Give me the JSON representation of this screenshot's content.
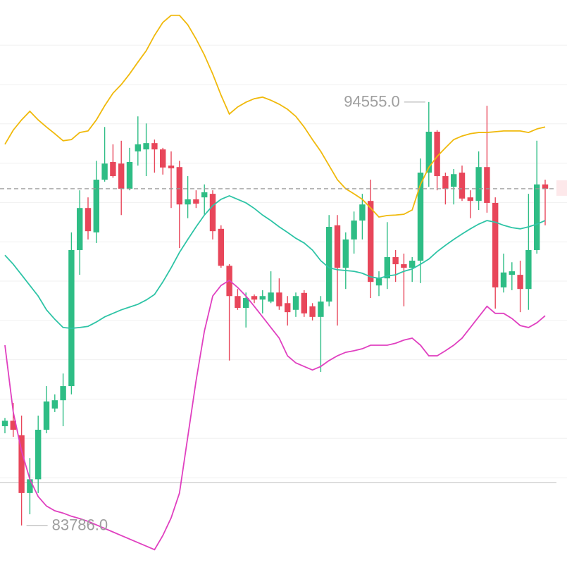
{
  "chart_data": {
    "type": "candlestick",
    "ylim": [
      82780,
      97150
    ],
    "gridlines": [
      96000,
      95000,
      94000,
      93000,
      92000,
      91000,
      90000,
      89000,
      88000,
      87000,
      86000,
      85000
    ],
    "grid": true,
    "reference_line": 84880,
    "up_color": "#2ebd85",
    "down_color": "#e8465a",
    "open": [
      86310,
      86450,
      86080,
      84610,
      84960,
      86220,
      86760,
      86970,
      87330,
      90790,
      91860,
      91240,
      92580,
      93030,
      92990,
      92350,
      93300,
      93350,
      93510,
      93350,
      92940,
      92900,
      91950,
      92080,
      92130,
      92220,
      91330,
      90390,
      89620,
      89320,
      89620,
      89530,
      89480,
      89710,
      89440,
      89270,
      89700,
      89360,
      89090,
      89480,
      91420,
      90340,
      91060,
      91540,
      92040,
      89890,
      90070,
      90610,
      90430,
      90340,
      90520,
      92760,
      93800,
      92670,
      92400,
      92760,
      92130,
      92040,
      92900,
      91990,
      89840,
      90160,
      90160,
      89800,
      90790,
      92460
    ],
    "high": [
      86520,
      86900,
      86580,
      85500,
      86580,
      87330,
      87120,
      87650,
      91240,
      92310,
      92130,
      93060,
      93920,
      93480,
      93570,
      93390,
      94190,
      94010,
      93600,
      93390,
      93300,
      93060,
      92670,
      92310,
      92460,
      92310,
      91420,
      90430,
      89800,
      89710,
      89660,
      89770,
      90250,
      90070,
      89620,
      89710,
      89770,
      89440,
      89620,
      91680,
      91680,
      91240,
      91770,
      92220,
      92580,
      90250,
      91500,
      90790,
      90700,
      90610,
      93120,
      94555,
      93840,
      92760,
      92850,
      92940,
      92310,
      93300,
      94460,
      92130,
      90700,
      90480,
      90520,
      92220,
      93570,
      92580
    ],
    "low": [
      86130,
      86040,
      83786,
      84070,
      84610,
      86130,
      86670,
      86310,
      87120,
      90160,
      91060,
      90970,
      92530,
      92630,
      91680,
      92310,
      92940,
      92670,
      92760,
      92710,
      91860,
      90840,
      91600,
      91860,
      91680,
      91060,
      90340,
      87980,
      89270,
      88820,
      89440,
      89180,
      89440,
      89270,
      88870,
      89090,
      89090,
      89000,
      87690,
      89360,
      88870,
      89800,
      90700,
      91060,
      89570,
      89620,
      89800,
      89980,
      89360,
      89980,
      89950,
      92400,
      92310,
      91950,
      91950,
      92040,
      91600,
      91810,
      91740,
      89300,
      89710,
      89770,
      89210,
      89270,
      90700,
      91420
    ],
    "close": [
      86450,
      86220,
      84610,
      84960,
      86220,
      86940,
      86970,
      87330,
      90790,
      91860,
      91270,
      92580,
      92990,
      92670,
      92350,
      93030,
      93480,
      93510,
      93350,
      92890,
      92870,
      91950,
      92080,
      91970,
      92260,
      91270,
      90390,
      89620,
      89320,
      89570,
      89530,
      89620,
      89710,
      89360,
      89210,
      89620,
      89180,
      89090,
      89480,
      91380,
      90340,
      91060,
      91540,
      91950,
      89980,
      90070,
      90610,
      90430,
      90340,
      90520,
      92760,
      93800,
      92670,
      92350,
      92720,
      92100,
      92040,
      92900,
      91990,
      89840,
      90220,
      90250,
      89800,
      90790,
      92460,
      92350
    ],
    "series": [
      {
        "color": "#f0b90b",
        "values": [
          93480,
          93840,
          94100,
          94320,
          94100,
          93920,
          93750,
          93570,
          93600,
          93780,
          93820,
          94100,
          94460,
          94780,
          95000,
          95270,
          95570,
          95860,
          96250,
          96580,
          96760,
          96760,
          96520,
          96160,
          95750,
          95270,
          94730,
          94250,
          94430,
          94550,
          94640,
          94680,
          94600,
          94500,
          94370,
          94190,
          93920,
          93600,
          93300,
          92940,
          92580,
          92350,
          92220,
          92080,
          91860,
          91630,
          91670,
          91680,
          91700,
          91810,
          92460,
          92890,
          93170,
          93390,
          93600,
          93690,
          93750,
          93780,
          93780,
          93800,
          93820,
          93820,
          93820,
          93780,
          93870,
          93920
        ]
      },
      {
        "color": "#2ec4a6",
        "values": [
          90660,
          90430,
          90160,
          89890,
          89620,
          89270,
          89030,
          88820,
          88800,
          88820,
          88850,
          88960,
          89090,
          89180,
          89270,
          89340,
          89410,
          89520,
          89660,
          89980,
          90340,
          90730,
          91060,
          91380,
          91680,
          91920,
          92080,
          92170,
          92080,
          91990,
          91850,
          91680,
          91540,
          91380,
          91240,
          91090,
          90970,
          90790,
          90520,
          90340,
          90290,
          90270,
          90250,
          90200,
          90110,
          90070,
          90130,
          90160,
          90250,
          90310,
          90430,
          90560,
          90750,
          90910,
          91060,
          91200,
          91330,
          91450,
          91540,
          91500,
          91420,
          91360,
          91330,
          91380,
          91450,
          91540
        ]
      },
      {
        "color": "#e040c0",
        "values": [
          88370,
          86670,
          85680,
          84960,
          84520,
          84280,
          84160,
          84100,
          84020,
          83960,
          83890,
          83800,
          83710,
          83620,
          83530,
          83440,
          83350,
          83260,
          83170,
          83530,
          83980,
          84610,
          86040,
          87470,
          88730,
          89620,
          89890,
          90020,
          89840,
          89620,
          89360,
          89090,
          88820,
          88550,
          88100,
          87920,
          87830,
          87740,
          87830,
          87980,
          88100,
          88190,
          88230,
          88280,
          88370,
          88370,
          88370,
          88420,
          88500,
          88550,
          88370,
          88100,
          88100,
          88230,
          88370,
          88550,
          88820,
          89090,
          89360,
          89180,
          89180,
          89050,
          88870,
          88820,
          88940,
          89120
        ]
      }
    ],
    "annotations": [
      {
        "text": "94555.0",
        "value": 94555
      },
      {
        "text": "83786.0",
        "value": 83786
      }
    ]
  }
}
